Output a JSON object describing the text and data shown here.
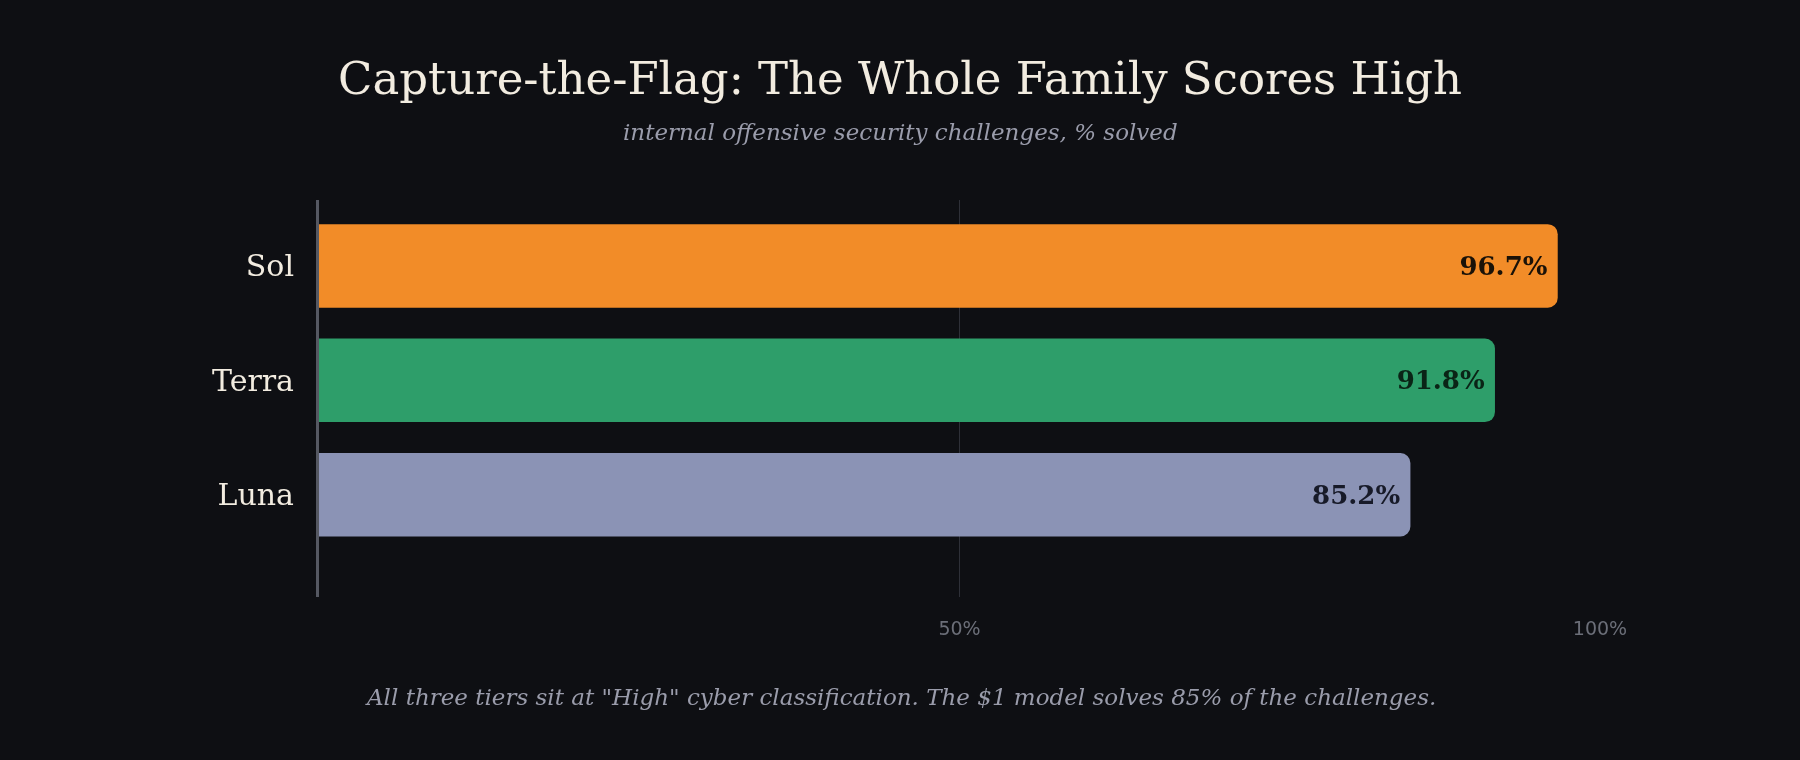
{
  "chart_data": {
    "type": "bar",
    "orientation": "horizontal",
    "title": "Capture-the-Flag: The Whole Family Scores High",
    "subtitle": "internal offensive security challenges, % solved",
    "categories": [
      "Sol",
      "Terra",
      "Luna"
    ],
    "values": [
      96.7,
      91.8,
      85.2
    ],
    "value_labels": [
      "96.7%",
      "91.8%",
      "85.2%"
    ],
    "colors": [
      "#f28c28",
      "#2e9e6a",
      "#8b93b5"
    ],
    "xlim": [
      0,
      100
    ],
    "xticks": [
      {
        "value": 0,
        "label": null
      },
      {
        "value": 50,
        "label": "50%"
      },
      {
        "value": 100,
        "label": "100%"
      }
    ],
    "grid": "x",
    "legend": false,
    "annotations": [
      "All three tiers sit at \"High\" cyber classification. The $1 model solves 85% of the challenges."
    ]
  }
}
